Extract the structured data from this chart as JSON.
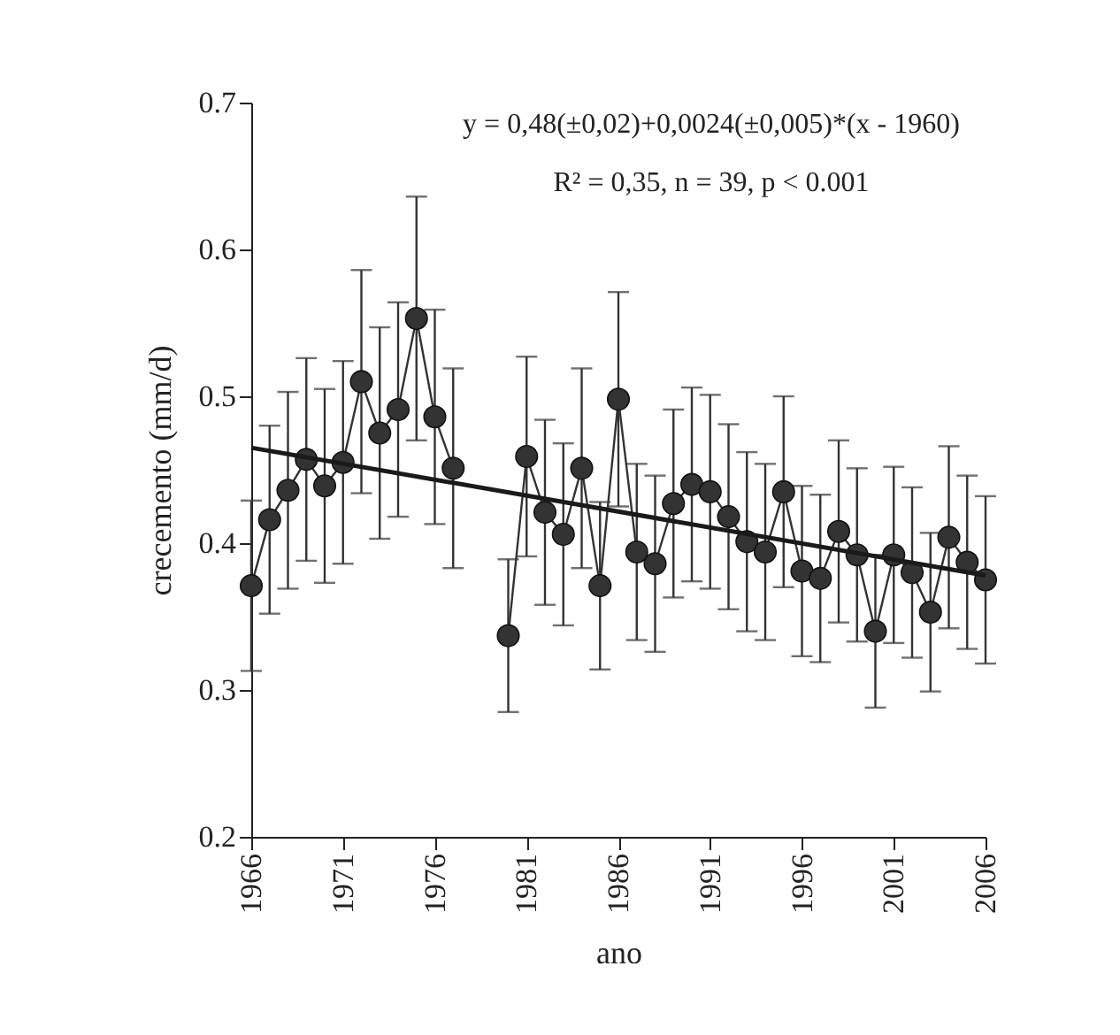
{
  "chart_data": {
    "type": "line",
    "xlabel": "ano",
    "ylabel": "crecemento (mm/d)",
    "annotations": [
      "y = 0,48(±0,02)+0,0024(±0,005)*(x - 1960)",
      "R² = 0,35,  n = 39, p < 0.001"
    ],
    "x": [
      1966,
      1967,
      1968,
      1969,
      1970,
      1971,
      1972,
      1973,
      1974,
      1975,
      1976,
      1977,
      1978,
      1979,
      1980,
      1981,
      1982,
      1983,
      1984,
      1985,
      1986,
      1987,
      1988,
      1989,
      1990,
      1991,
      1992,
      1993,
      1994,
      1995,
      1996,
      1997,
      1998,
      1999,
      2000,
      2001,
      2002,
      2003,
      2004,
      2005,
      2006
    ],
    "xlim": [
      1966,
      2006
    ],
    "xticks": [
      1966,
      1971,
      1976,
      1981,
      1986,
      1991,
      1996,
      2001,
      2006
    ],
    "ylim": [
      0.2,
      0.7
    ],
    "yticks": [
      0.2,
      0.3,
      0.4,
      0.5,
      0.6,
      0.7
    ],
    "grid": false,
    "marker": "circle",
    "line_style": "solid",
    "series": [
      {
        "color": "#333333",
        "values": [
          0.371,
          0.416,
          0.436,
          0.457,
          0.439,
          0.455,
          0.51,
          0.475,
          0.491,
          0.553,
          0.486,
          0.451,
          null,
          null,
          0.337,
          0.459,
          0.421,
          0.406,
          0.451,
          0.371,
          0.498,
          0.394,
          0.386,
          0.427,
          0.44,
          0.435,
          0.418,
          0.401,
          0.394,
          0.435,
          0.381,
          0.376,
          0.408,
          0.392,
          0.34,
          0.392,
          0.38,
          0.353,
          0.404,
          0.387,
          0.375
        ],
        "errors": [
          0.058,
          0.064,
          0.067,
          0.069,
          0.066,
          0.069,
          0.076,
          0.072,
          0.073,
          0.083,
          0.073,
          0.068,
          null,
          null,
          0.052,
          0.068,
          0.063,
          0.062,
          0.068,
          0.057,
          0.073,
          0.06,
          0.06,
          0.064,
          0.066,
          0.066,
          0.063,
          0.061,
          0.06,
          0.065,
          0.058,
          0.057,
          0.062,
          0.059,
          0.052,
          0.06,
          0.058,
          0.054,
          0.062,
          0.059,
          0.057
        ]
      },
      {
        "type": "line",
        "x": [
          1966,
          2006
        ],
        "values": [
          0.465,
          0.378
        ],
        "color": "#1a1a1a",
        "marker": "none"
      }
    ]
  }
}
